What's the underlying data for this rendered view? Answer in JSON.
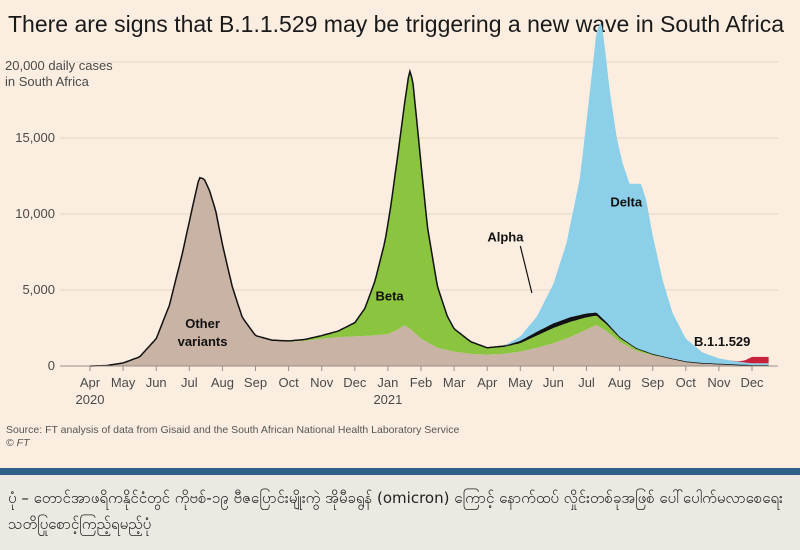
{
  "figure": {
    "title": "There are signs that B.1.1.529 may be triggering a new wave in South Africa",
    "source": "Source: FT analysis of data from Gisaid and the South African National Health Laboratory Service",
    "copyright": "© FT"
  },
  "caption": {
    "text": "ပုံ – တောင်အာဖရိကနိုင်ငံတွင် ကိုဗစ်-၁၉ ဗီဇပြောင်းမျိုးကွဲ အိုမီခရွန် (omicron) ကြောင့် နောက်ထပ် လှိုင်းတစ်ခုအဖြစ် ပေါ်ပေါက်မလာစေရေး သတိပြုစောင့်ကြည့်ရမည့်ပုံ"
  },
  "chart_data": {
    "type": "area",
    "title": "There are signs that B.1.1.529 may be triggering a new wave in South Africa",
    "ylabel": "daily cases in South Africa",
    "ylabel_lines": [
      "20,000 daily cases",
      "in South Africa"
    ],
    "ylim": [
      0,
      20000
    ],
    "yticks": [
      0,
      5000,
      10000,
      15000,
      20000
    ],
    "ytick_labels": [
      "0",
      "5,000",
      "10,000",
      "15,000",
      ""
    ],
    "xlim": [
      0,
      20.5
    ],
    "x_months": [
      "Apr",
      "May",
      "Jun",
      "Jul",
      "Aug",
      "Sep",
      "Oct",
      "Nov",
      "Dec",
      "Jan",
      "Feb",
      "Mar",
      "Apr",
      "May",
      "Jun",
      "Jul",
      "Aug",
      "Sep",
      "Oct",
      "Nov",
      "Dec"
    ],
    "x_years": [
      {
        "label": "2020",
        "month_index": 0
      },
      {
        "label": "2021",
        "month_index": 9
      }
    ],
    "x_unit": "months since Apr 2020",
    "grid": "horizontal",
    "stacking": "stacked",
    "series": [
      {
        "name": "Other variants",
        "color": "#c9b3a4",
        "label_lines": [
          "Other",
          "variants"
        ],
        "label_at": [
          3.4,
          2500
        ],
        "points": [
          [
            0,
            0
          ],
          [
            0.5,
            30
          ],
          [
            1,
            200
          ],
          [
            1.5,
            600
          ],
          [
            2,
            1800
          ],
          [
            2.4,
            4000
          ],
          [
            2.8,
            7500
          ],
          [
            3.1,
            10500
          ],
          [
            3.3,
            12400
          ],
          [
            3.45,
            12300
          ],
          [
            3.6,
            11600
          ],
          [
            3.8,
            10200
          ],
          [
            4,
            8000
          ],
          [
            4.3,
            5200
          ],
          [
            4.6,
            3200
          ],
          [
            5,
            2000
          ],
          [
            5.5,
            1700
          ],
          [
            6,
            1600
          ],
          [
            6.5,
            1650
          ],
          [
            7,
            1800
          ],
          [
            7.5,
            1900
          ],
          [
            8,
            1950
          ],
          [
            8.5,
            2000
          ],
          [
            9,
            2100
          ],
          [
            9.3,
            2400
          ],
          [
            9.5,
            2700
          ],
          [
            9.7,
            2400
          ],
          [
            10,
            1800
          ],
          [
            10.5,
            1200
          ],
          [
            11,
            950
          ],
          [
            11.5,
            800
          ],
          [
            12,
            750
          ],
          [
            12.5,
            800
          ],
          [
            13,
            950
          ],
          [
            13.5,
            1200
          ],
          [
            14,
            1500
          ],
          [
            14.5,
            1900
          ],
          [
            15,
            2400
          ],
          [
            15.3,
            2700
          ],
          [
            15.6,
            2300
          ],
          [
            16,
            1600
          ],
          [
            16.5,
            1000
          ],
          [
            17,
            700
          ],
          [
            17.5,
            500
          ],
          [
            18,
            300
          ],
          [
            18.5,
            200
          ],
          [
            19,
            150
          ],
          [
            19.5,
            100
          ],
          [
            20,
            60
          ]
        ]
      },
      {
        "name": "Beta",
        "color": "#8bc43f",
        "label_lines": [
          "Beta"
        ],
        "label_at": [
          9.05,
          4300
        ],
        "points": [
          [
            0,
            0
          ],
          [
            5.5,
            0
          ],
          [
            6,
            50
          ],
          [
            6.5,
            100
          ],
          [
            7,
            200
          ],
          [
            7.5,
            400
          ],
          [
            8,
            900
          ],
          [
            8.3,
            1800
          ],
          [
            8.6,
            3500
          ],
          [
            8.9,
            6000
          ],
          [
            9.1,
            8500
          ],
          [
            9.3,
            11500
          ],
          [
            9.5,
            14500
          ],
          [
            9.65,
            17000
          ],
          [
            9.75,
            16500
          ],
          [
            9.85,
            14500
          ],
          [
            10,
            11500
          ],
          [
            10.2,
            7500
          ],
          [
            10.5,
            4000
          ],
          [
            10.8,
            2200
          ],
          [
            11,
            1500
          ],
          [
            11.5,
            800
          ],
          [
            12,
            450
          ],
          [
            12.5,
            450
          ],
          [
            13,
            550
          ],
          [
            13.5,
            800
          ],
          [
            14,
            1000
          ],
          [
            14.5,
            1000
          ],
          [
            15,
            800
          ],
          [
            15.5,
            500
          ],
          [
            16,
            250
          ],
          [
            16.5,
            150
          ],
          [
            17,
            80
          ],
          [
            18,
            0
          ],
          [
            20,
            0
          ]
        ]
      },
      {
        "name": "Alpha",
        "color": "#111111",
        "label_lines": [
          "Alpha"
        ],
        "label_at": [
          12.55,
          8200
        ],
        "pointer_from": [
          13.0,
          7900
        ],
        "pointer_to": [
          13.35,
          4800
        ],
        "points": [
          [
            0,
            0
          ],
          [
            12,
            0
          ],
          [
            12.5,
            60
          ],
          [
            13,
            150
          ],
          [
            13.5,
            250
          ],
          [
            14,
            300
          ],
          [
            14.5,
            300
          ],
          [
            15,
            250
          ],
          [
            15.5,
            160
          ],
          [
            16,
            80
          ],
          [
            16.5,
            40
          ],
          [
            17,
            10
          ],
          [
            17.5,
            0
          ],
          [
            20,
            0
          ]
        ]
      },
      {
        "name": "Delta",
        "color": "#8ccfe8",
        "label_lines": [
          "Delta"
        ],
        "label_at": [
          16.2,
          10500
        ],
        "points": [
          [
            0,
            0
          ],
          [
            12.5,
            0
          ],
          [
            13,
            300
          ],
          [
            13.5,
            1000
          ],
          [
            14,
            2600
          ],
          [
            14.4,
            5000
          ],
          [
            14.8,
            9000
          ],
          [
            15.1,
            14500
          ],
          [
            15.3,
            18500
          ],
          [
            15.45,
            19500
          ],
          [
            15.55,
            18000
          ],
          [
            15.7,
            15500
          ],
          [
            15.9,
            13000
          ],
          [
            16.1,
            11500
          ],
          [
            16.3,
            10500
          ],
          [
            16.5,
            10800
          ],
          [
            16.65,
            10900
          ],
          [
            16.8,
            10000
          ],
          [
            17,
            7800
          ],
          [
            17.3,
            5000
          ],
          [
            17.6,
            3000
          ],
          [
            18,
            1500
          ],
          [
            18.5,
            700
          ],
          [
            19,
            350
          ],
          [
            19.5,
            200
          ],
          [
            20,
            120
          ]
        ]
      },
      {
        "name": "B.1.1.529",
        "color": "#c8213a",
        "label_lines": [
          "B.1.1.529"
        ],
        "label_at": [
          19.1,
          1300
        ],
        "points": [
          [
            0,
            0
          ],
          [
            19.3,
            0
          ],
          [
            19.6,
            30
          ],
          [
            19.8,
            150
          ],
          [
            20,
            420
          ]
        ]
      }
    ],
    "annotations": [
      "Other variants",
      "Beta",
      "Alpha",
      "Delta",
      "B.1.1.529"
    ]
  }
}
